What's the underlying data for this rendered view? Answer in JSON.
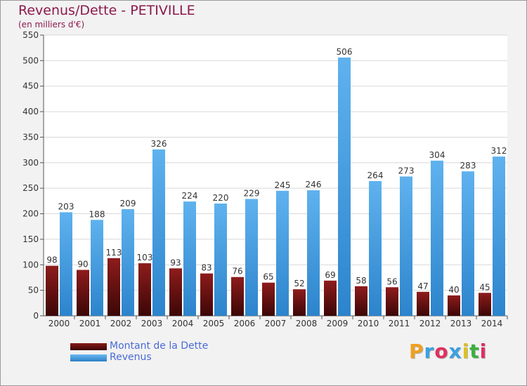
{
  "chart_data": {
    "type": "bar",
    "title": "Revenus/Dette - PETIVILLE",
    "subtitle": "(en milliers d'€)",
    "categories": [
      "2000",
      "2001",
      "2002",
      "2003",
      "2004",
      "2005",
      "2006",
      "2007",
      "2008",
      "2009",
      "2010",
      "2011",
      "2012",
      "2013",
      "2014"
    ],
    "series": [
      {
        "name": "Montant de la Dette",
        "color": "#6e1010",
        "values": [
          98,
          90,
          113,
          103,
          93,
          83,
          76,
          65,
          52,
          69,
          58,
          56,
          47,
          40,
          45
        ]
      },
      {
        "name": "Revenus",
        "color": "#4aa0e6",
        "values": [
          203,
          188,
          209,
          326,
          224,
          220,
          229,
          245,
          246,
          506,
          264,
          273,
          304,
          283,
          312
        ]
      }
    ],
    "ylim": [
      0,
      550
    ],
    "yticks": [
      0,
      50,
      100,
      150,
      200,
      250,
      300,
      350,
      400,
      450,
      500,
      550
    ],
    "grid": true,
    "legend_position": "bottom-left"
  },
  "logo": {
    "letters": [
      "P",
      "r",
      "o",
      "x",
      "i",
      "t",
      "i"
    ],
    "colors": [
      "#f0a020",
      "#3aa0e0",
      "#e03060",
      "#3aa0e0",
      "#e0c020",
      "#3ab040",
      "#e03060"
    ]
  }
}
